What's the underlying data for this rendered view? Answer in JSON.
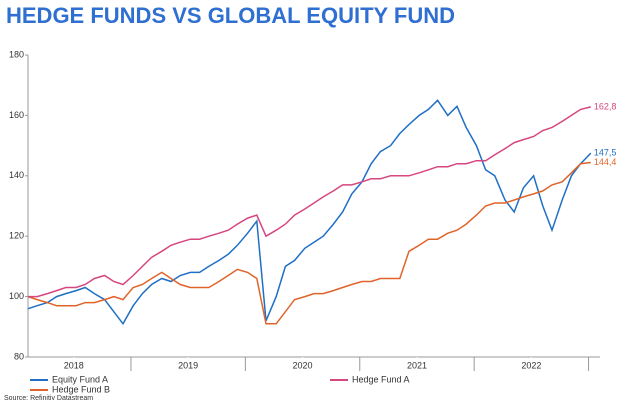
{
  "chart_data": {
    "type": "line",
    "title": "HEDGE FUNDS VS GLOBAL EQUITY FUND",
    "source": "Source: Refinitiv Datastream",
    "xlim": [
      2018.1,
      2023.1
    ],
    "ylim": [
      80,
      180
    ],
    "yticks": [
      80,
      100,
      120,
      140,
      160,
      180
    ],
    "xticks": [
      {
        "value": 2018.5,
        "label": "2018"
      },
      {
        "value": 2019.5,
        "label": "2019"
      },
      {
        "value": 2020.5,
        "label": "2020"
      },
      {
        "value": 2021.5,
        "label": "2021"
      },
      {
        "value": 2022.5,
        "label": "2022"
      }
    ],
    "grid": false,
    "x": [
      2018.1,
      2018.18,
      2018.27,
      2018.35,
      2018.43,
      2018.52,
      2018.6,
      2018.68,
      2018.77,
      2018.85,
      2018.93,
      2019.02,
      2019.1,
      2019.18,
      2019.27,
      2019.35,
      2019.43,
      2019.52,
      2019.6,
      2019.68,
      2019.77,
      2019.85,
      2019.93,
      2020.02,
      2020.1,
      2020.18,
      2020.27,
      2020.35,
      2020.43,
      2020.52,
      2020.6,
      2020.68,
      2020.77,
      2020.85,
      2020.93,
      2021.02,
      2021.1,
      2021.18,
      2021.27,
      2021.35,
      2021.43,
      2021.52,
      2021.6,
      2021.68,
      2021.77,
      2021.85,
      2021.93,
      2022.02,
      2022.1,
      2022.18,
      2022.27,
      2022.35,
      2022.43,
      2022.52,
      2022.6,
      2022.68,
      2022.77,
      2022.85,
      2022.93,
      2023.02
    ],
    "series": [
      {
        "name": "Equity Fund A",
        "color": "#1f6fc5",
        "values": [
          96,
          97,
          98,
          100,
          101,
          102,
          103,
          101,
          99,
          95,
          91,
          97,
          101,
          104,
          106,
          105,
          107,
          108,
          108,
          110,
          112,
          114,
          117,
          121,
          125,
          92,
          100,
          110,
          112,
          116,
          118,
          120,
          124,
          128,
          134,
          138,
          144,
          148,
          150,
          154,
          157,
          160,
          162,
          165,
          160,
          163,
          156,
          150,
          142,
          140,
          132,
          128,
          136,
          140,
          130,
          122,
          132,
          140,
          144,
          147.5
        ],
        "value_labels": [
          null,
          null,
          null,
          null,
          null,
          null,
          null,
          null,
          null,
          null,
          null,
          null,
          null,
          null,
          null,
          null,
          null,
          null,
          null,
          null,
          null,
          null,
          null,
          null,
          null,
          null,
          null,
          null,
          null,
          null,
          null,
          null,
          null,
          null,
          null,
          null,
          null,
          null,
          null,
          null,
          null,
          null,
          null,
          null,
          null,
          null,
          null,
          null,
          null,
          null,
          null,
          null,
          null,
          null,
          null,
          null,
          null,
          null,
          null,
          "147,5"
        ]
      },
      {
        "name": "Hedge Fund B",
        "color": "#e0642a",
        "values": [
          100,
          99,
          98,
          97,
          97,
          97,
          98,
          98,
          99,
          100,
          99,
          103,
          104,
          106,
          108,
          106,
          104,
          103,
          103,
          103,
          105,
          107,
          109,
          108,
          106,
          91,
          91,
          95,
          99,
          100,
          101,
          101,
          102,
          103,
          104,
          105,
          105,
          106,
          106,
          106,
          115,
          117,
          119,
          119,
          121,
          122,
          124,
          127,
          130,
          131,
          131,
          132,
          133,
          134,
          135,
          137,
          138,
          141,
          144,
          144.4
        ],
        "value_labels": [
          null,
          null,
          null,
          null,
          null,
          null,
          null,
          null,
          null,
          null,
          null,
          null,
          null,
          null,
          null,
          null,
          null,
          null,
          null,
          null,
          null,
          null,
          null,
          null,
          null,
          null,
          null,
          null,
          null,
          null,
          null,
          null,
          null,
          null,
          null,
          null,
          null,
          null,
          null,
          null,
          null,
          null,
          null,
          null,
          null,
          null,
          null,
          null,
          null,
          null,
          null,
          null,
          null,
          null,
          null,
          null,
          null,
          null,
          null,
          "144,4"
        ]
      },
      {
        "name": "Hedge Fund A",
        "color": "#d6467f",
        "values": [
          100,
          100,
          101,
          102,
          103,
          103,
          104,
          106,
          107,
          105,
          104,
          107,
          110,
          113,
          115,
          117,
          118,
          119,
          119,
          120,
          121,
          122,
          124,
          126,
          127,
          120,
          122,
          124,
          127,
          129,
          131,
          133,
          135,
          137,
          137,
          138,
          139,
          139,
          140,
          140,
          140,
          141,
          142,
          143,
          143,
          144,
          144,
          145,
          145,
          147,
          149,
          151,
          152,
          153,
          155,
          156,
          158,
          160,
          162,
          162.8
        ],
        "value_labels": [
          null,
          null,
          null,
          null,
          null,
          null,
          null,
          null,
          null,
          null,
          null,
          null,
          null,
          null,
          null,
          null,
          null,
          null,
          null,
          null,
          null,
          null,
          null,
          null,
          null,
          null,
          null,
          null,
          null,
          null,
          null,
          null,
          null,
          null,
          null,
          null,
          null,
          null,
          null,
          null,
          null,
          null,
          null,
          null,
          null,
          null,
          null,
          null,
          null,
          null,
          null,
          null,
          null,
          null,
          null,
          null,
          null,
          null,
          null,
          "162,8"
        ]
      }
    ]
  }
}
